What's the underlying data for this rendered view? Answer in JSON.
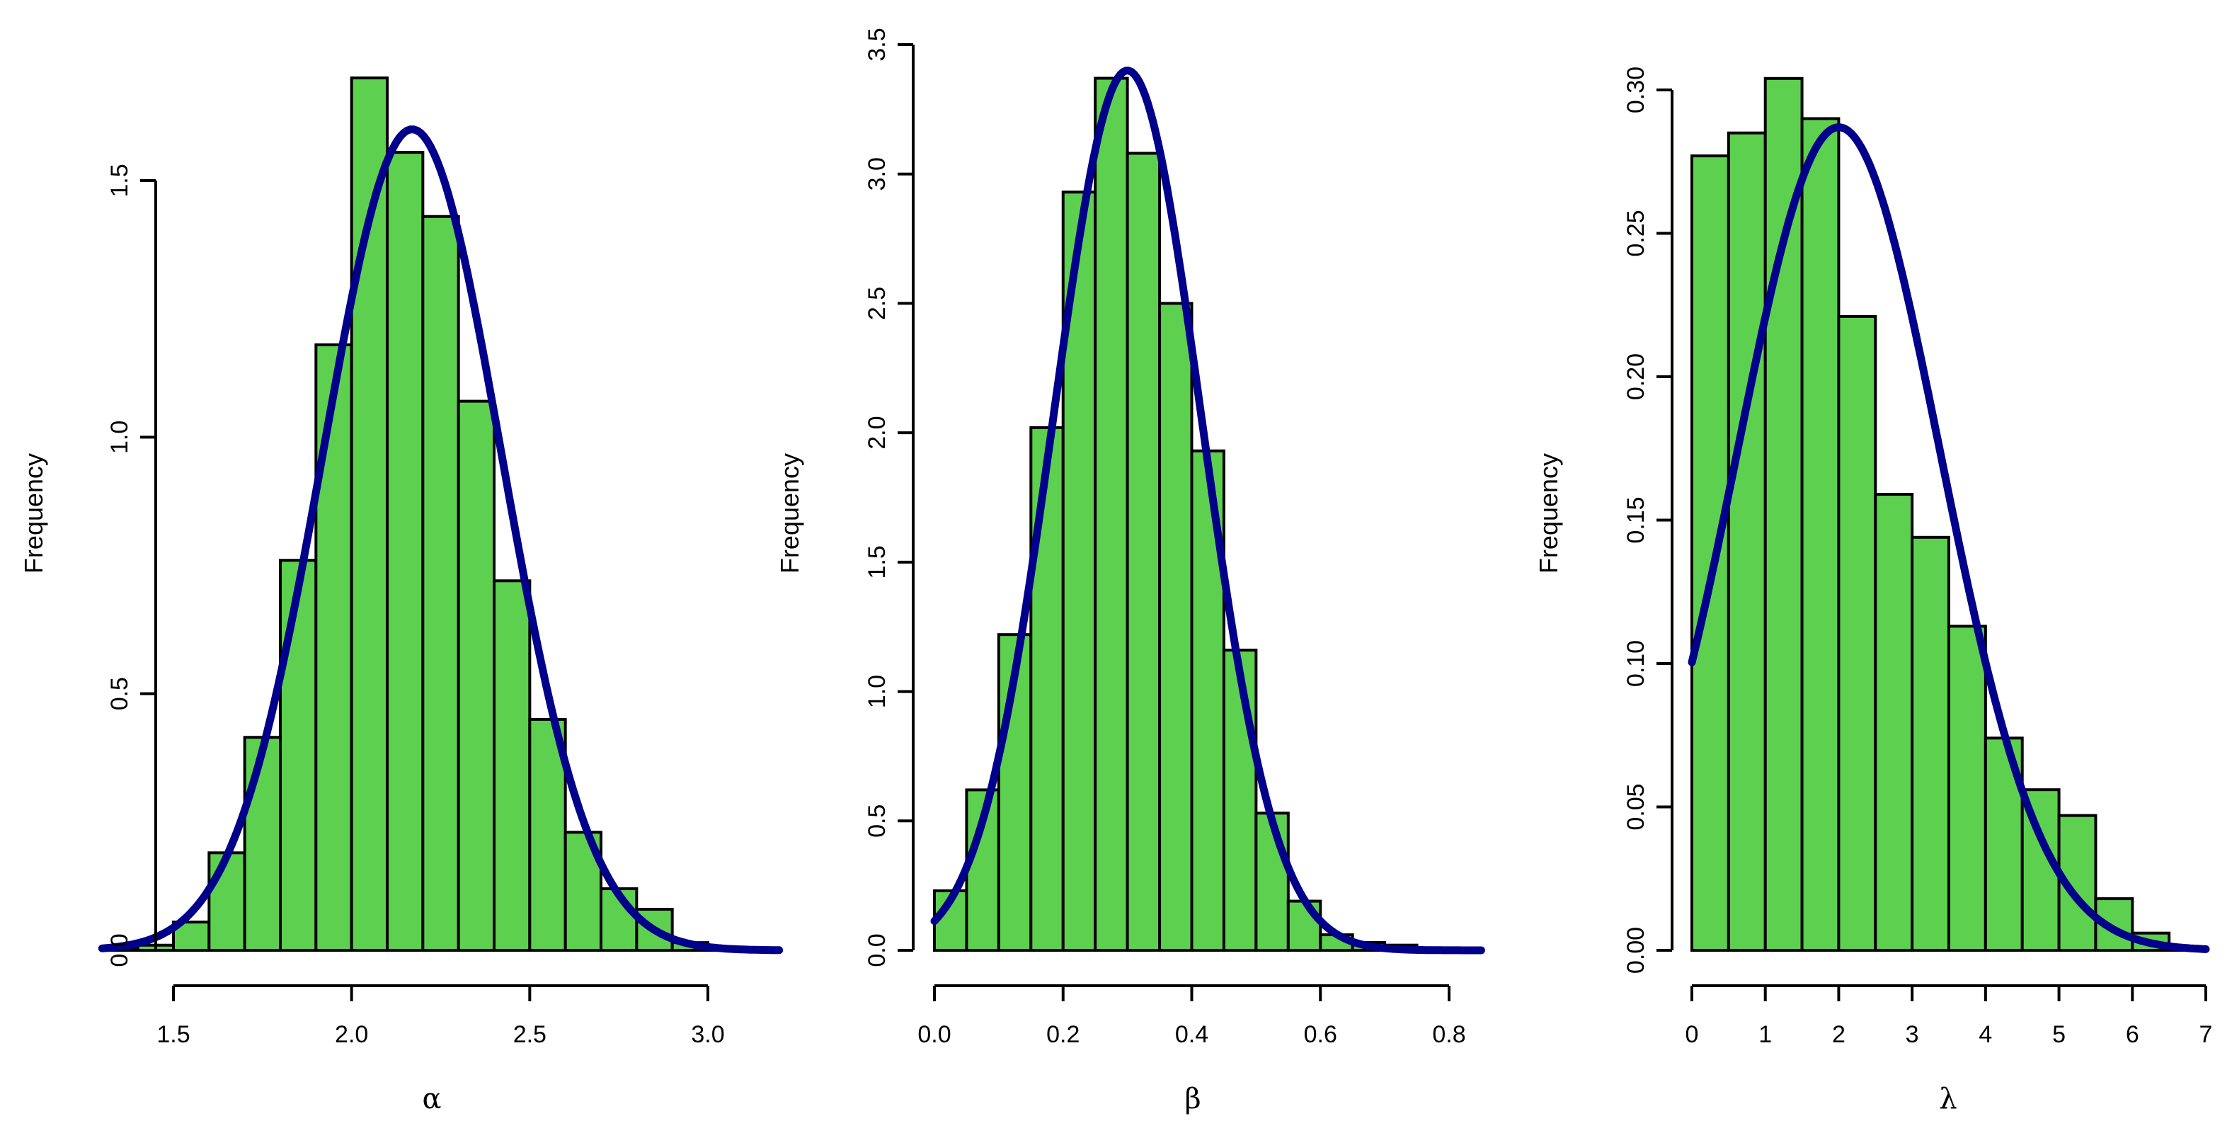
{
  "colors": {
    "bar_fill": "#5ed04f",
    "bar_stroke": "#000000",
    "curve": "#00008b"
  },
  "chart_data": [
    {
      "type": "bar",
      "ylabel": "Frequency",
      "xlabel": "α",
      "xlim": [
        1.3,
        3.2
      ],
      "ylim": [
        0,
        1.7
      ],
      "xticks": [
        1.5,
        2.0,
        2.5,
        3.0
      ],
      "xtick_labels": [
        "1.5",
        "2.0",
        "2.5",
        "3.0"
      ],
      "yticks": [
        0,
        0.5,
        1.0,
        1.5
      ],
      "ytick_labels": [
        "0.0",
        "0.5",
        "1.0",
        "1.5"
      ],
      "bin_edges": [
        1.3,
        1.4,
        1.5,
        1.6,
        1.7,
        1.8,
        1.9,
        2.0,
        2.1,
        2.2,
        2.3,
        2.4,
        2.5,
        2.6,
        2.7,
        2.8,
        2.9,
        3.0,
        3.1,
        3.2
      ],
      "values": [
        0.005,
        0.01,
        0.055,
        0.19,
        0.415,
        0.76,
        1.18,
        1.7,
        1.555,
        1.43,
        1.07,
        0.72,
        0.45,
        0.23,
        0.12,
        0.08,
        0.015,
        0.005,
        0.002
      ],
      "curve": {
        "distribution": "normal",
        "mean": 2.17,
        "sd": 0.25,
        "peak": 1.6
      }
    },
    {
      "type": "bar",
      "ylabel": "Frequency",
      "xlabel": "β",
      "xlim": [
        0.0,
        0.85
      ],
      "ylim": [
        0,
        3.5
      ],
      "xticks": [
        0.0,
        0.2,
        0.4,
        0.6,
        0.8
      ],
      "xtick_labels": [
        "0.0",
        "0.2",
        "0.4",
        "0.6",
        "0.8"
      ],
      "yticks": [
        0,
        0.5,
        1.0,
        1.5,
        2.0,
        2.5,
        3.0,
        3.5
      ],
      "ytick_labels": [
        "0.0",
        "0.5",
        "1.0",
        "1.5",
        "2.0",
        "2.5",
        "3.0",
        "3.5"
      ],
      "bin_edges": [
        0.0,
        0.05,
        0.1,
        0.15,
        0.2,
        0.25,
        0.3,
        0.35,
        0.4,
        0.45,
        0.5,
        0.55,
        0.6,
        0.65,
        0.7,
        0.75,
        0.8,
        0.85
      ],
      "values": [
        0.23,
        0.62,
        1.22,
        2.02,
        2.93,
        3.37,
        3.08,
        2.5,
        1.93,
        1.16,
        0.53,
        0.19,
        0.06,
        0.03,
        0.02,
        0.005,
        0.003
      ],
      "curve": {
        "distribution": "normal",
        "mean": 0.3,
        "sd": 0.115,
        "peak": 3.4
      }
    },
    {
      "type": "bar",
      "ylabel": "Frequency",
      "xlabel": "λ",
      "xlim": [
        0,
        7
      ],
      "ylim": [
        0,
        0.3
      ],
      "xticks": [
        0,
        1,
        2,
        3,
        4,
        5,
        6,
        7
      ],
      "xtick_labels": [
        "0",
        "1",
        "2",
        "3",
        "4",
        "5",
        "6",
        "7"
      ],
      "yticks": [
        0,
        0.05,
        0.1,
        0.15,
        0.2,
        0.25,
        0.3
      ],
      "ytick_labels": [
        "0.00",
        "0.05",
        "0.10",
        "0.15",
        "0.20",
        "0.25",
        "0.30"
      ],
      "bin_edges": [
        0,
        0.5,
        1.0,
        1.5,
        2.0,
        2.5,
        3.0,
        3.5,
        4.0,
        4.5,
        5.0,
        5.5,
        6.0,
        6.5,
        7.0
      ],
      "values": [
        0.277,
        0.285,
        0.304,
        0.29,
        0.221,
        0.159,
        0.144,
        0.113,
        0.074,
        0.056,
        0.047,
        0.018,
        0.006,
        0.001
      ],
      "curve": {
        "distribution": "normal",
        "mean": 2.0,
        "sd": 1.38,
        "peak": 0.287
      }
    }
  ]
}
